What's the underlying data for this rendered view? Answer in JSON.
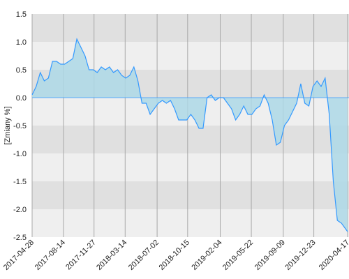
{
  "chart_data": {
    "type": "area",
    "y_label": "[Zmiany %]",
    "x": [
      "2017-04-28",
      "2017-05-12",
      "2017-05-26",
      "2017-06-09",
      "2017-06-23",
      "2017-07-07",
      "2017-07-21",
      "2017-08-04",
      "2017-08-18",
      "2017-09-01",
      "2017-09-15",
      "2017-09-29",
      "2017-10-13",
      "2017-10-27",
      "2017-11-10",
      "2017-11-24",
      "2017-12-08",
      "2017-12-22",
      "2018-01-05",
      "2018-01-19",
      "2018-02-02",
      "2018-02-16",
      "2018-03-02",
      "2018-03-16",
      "2018-03-30",
      "2018-04-13",
      "2018-04-27",
      "2018-05-11",
      "2018-05-25",
      "2018-06-08",
      "2018-06-22",
      "2018-07-06",
      "2018-07-20",
      "2018-08-03",
      "2018-08-17",
      "2018-08-31",
      "2018-09-14",
      "2018-09-28",
      "2018-10-12",
      "2018-10-26",
      "2018-11-09",
      "2018-11-23",
      "2018-12-07",
      "2018-12-21",
      "2019-01-04",
      "2019-01-18",
      "2019-02-01",
      "2019-02-15",
      "2019-03-01",
      "2019-03-15",
      "2019-03-29",
      "2019-04-12",
      "2019-04-26",
      "2019-05-10",
      "2019-05-24",
      "2019-06-07",
      "2019-06-21",
      "2019-07-05",
      "2019-07-19",
      "2019-08-02",
      "2019-08-16",
      "2019-08-30",
      "2019-09-13",
      "2019-09-27",
      "2019-10-11",
      "2019-10-25",
      "2019-11-08",
      "2019-11-22",
      "2019-12-06",
      "2019-12-20",
      "2020-01-03",
      "2020-01-17",
      "2020-01-31",
      "2020-02-14",
      "2020-02-28",
      "2020-03-13",
      "2020-03-27",
      "2020-04-10",
      "2020-04-17"
    ],
    "series": [
      {
        "color": "#3399ff",
        "fill": "#add8e6",
        "values": [
          0.05,
          0.2,
          0.45,
          0.3,
          0.35,
          0.65,
          0.65,
          0.6,
          0.6,
          0.65,
          0.7,
          1.05,
          0.9,
          0.75,
          0.5,
          0.5,
          0.45,
          0.55,
          0.5,
          0.55,
          0.45,
          0.5,
          0.4,
          0.35,
          0.4,
          0.55,
          0.3,
          -0.1,
          -0.1,
          -0.3,
          -0.2,
          -0.1,
          -0.05,
          -0.1,
          -0.05,
          -0.2,
          -0.4,
          -0.4,
          -0.4,
          -0.3,
          -0.4,
          -0.55,
          -0.55,
          0.0,
          0.05,
          -0.05,
          0.0,
          0.0,
          -0.1,
          -0.2,
          -0.4,
          -0.3,
          -0.15,
          -0.3,
          -0.3,
          -0.2,
          -0.15,
          0.05,
          -0.1,
          -0.4,
          -0.85,
          -0.8,
          -0.5,
          -0.4,
          -0.25,
          -0.1,
          0.25,
          -0.1,
          -0.15,
          0.2,
          0.3,
          0.2,
          0.35,
          -0.3,
          -1.5,
          -2.2,
          -2.25,
          -2.35,
          -2.4
        ]
      }
    ],
    "xlim": [
      "2017-04-28",
      "2020-04-22"
    ],
    "xticks": [
      "2017-04-28",
      "2017-08-14",
      "2017-11-27",
      "2018-03-14",
      "2018-07-02",
      "2018-10-15",
      "2019-02-04",
      "2019-05-22",
      "2019-09-09",
      "2019-12-23",
      "2020-04-17"
    ],
    "ylim": [
      -2.5,
      1.5
    ],
    "yticks": [
      {
        "value": -2.5,
        "label": "-2.5"
      },
      {
        "value": -2,
        "label": "-2.0"
      },
      {
        "value": -1.5,
        "label": "-1.5"
      },
      {
        "value": -1,
        "label": "-1.0"
      },
      {
        "value": -0.5,
        "label": "-0.5"
      },
      {
        "value": 0,
        "label": "0.0"
      },
      {
        "value": 0.5,
        "label": "0.5"
      },
      {
        "value": 1,
        "label": "1.0"
      },
      {
        "value": 1.5,
        "label": "1.5"
      }
    ],
    "band_colors": [
      "#e0e0e0",
      "#efefef"
    ],
    "grid": true
  }
}
